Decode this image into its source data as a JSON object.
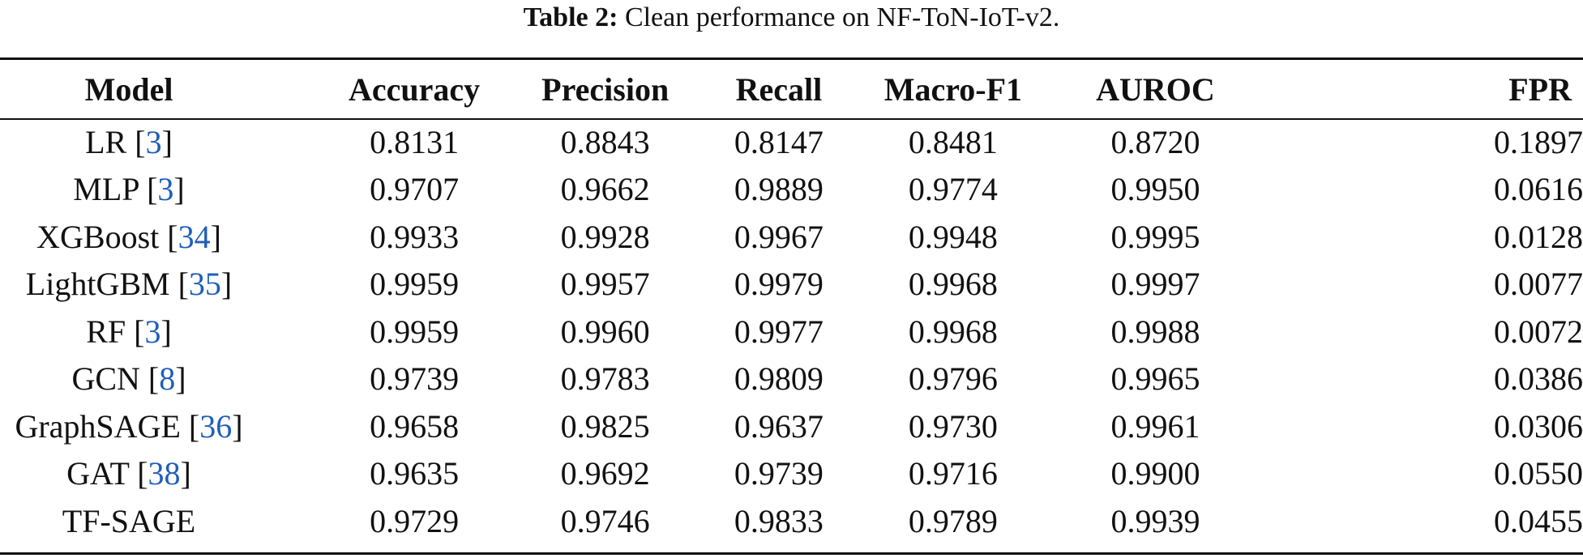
{
  "caption": {
    "label": "Table 2:",
    "text": "Clean performance on NF-ToN-IoT-v2."
  },
  "columns": [
    "Model",
    "Accuracy",
    "Precision",
    "Recall",
    "Macro-F1",
    "AUROC",
    "FPR"
  ],
  "rows": [
    {
      "model": "LR",
      "cite": "3",
      "values": [
        "0.8131",
        "0.8843",
        "0.8147",
        "0.8481",
        "0.8720",
        "0.1897"
      ]
    },
    {
      "model": "MLP",
      "cite": "3",
      "values": [
        "0.9707",
        "0.9662",
        "0.9889",
        "0.9774",
        "0.9950",
        "0.0616"
      ]
    },
    {
      "model": "XGBoost",
      "cite": "34",
      "values": [
        "0.9933",
        "0.9928",
        "0.9967",
        "0.9948",
        "0.9995",
        "0.0128"
      ]
    },
    {
      "model": "LightGBM",
      "cite": "35",
      "values": [
        "0.9959",
        "0.9957",
        "0.9979",
        "0.9968",
        "0.9997",
        "0.0077"
      ]
    },
    {
      "model": "RF",
      "cite": "3",
      "values": [
        "0.9959",
        "0.9960",
        "0.9977",
        "0.9968",
        "0.9988",
        "0.0072"
      ]
    },
    {
      "model": "GCN",
      "cite": "8",
      "values": [
        "0.9739",
        "0.9783",
        "0.9809",
        "0.9796",
        "0.9965",
        "0.0386"
      ]
    },
    {
      "model": "GraphSAGE",
      "cite": "36",
      "values": [
        "0.9658",
        "0.9825",
        "0.9637",
        "0.9730",
        "0.9961",
        "0.0306"
      ]
    },
    {
      "model": "GAT",
      "cite": "38",
      "values": [
        "0.9635",
        "0.9692",
        "0.9739",
        "0.9716",
        "0.9900",
        "0.0550"
      ]
    },
    {
      "model": "TF-SAGE",
      "cite": null,
      "values": [
        "0.9729",
        "0.9746",
        "0.9833",
        "0.9789",
        "0.9939",
        "0.0455"
      ]
    }
  ]
}
